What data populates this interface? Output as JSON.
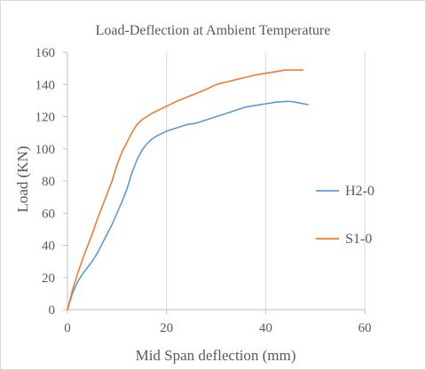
{
  "chart_data": {
    "type": "line",
    "title": "Load-Deflection at Ambient Temperature",
    "xlabel": "Mid Span deflection (mm)",
    "ylabel": "Load (KN)",
    "xlim": [
      0,
      60
    ],
    "ylim": [
      0,
      160
    ],
    "x_ticks": [
      0,
      20,
      40,
      60
    ],
    "y_ticks": [
      0,
      20,
      40,
      60,
      80,
      100,
      120,
      140,
      160
    ],
    "grid": "vertical",
    "legend_position": "right",
    "series": [
      {
        "name": "H2-0",
        "color": "#5b9bd5",
        "x": [
          0,
          1,
          2,
          3,
          4,
          5,
          6,
          7,
          8,
          9,
          10,
          11,
          12,
          13,
          14,
          15,
          16,
          17,
          18,
          20,
          22,
          24,
          26,
          28,
          30,
          32,
          34,
          36,
          38,
          40,
          42,
          44,
          45,
          46,
          48.5
        ],
        "y": [
          0,
          10,
          17,
          22,
          26,
          30,
          35,
          41,
          47,
          53,
          60,
          67,
          75,
          85,
          93,
          99,
          103,
          106,
          108,
          111,
          113,
          115,
          116,
          118,
          120,
          122,
          124,
          126,
          127,
          128,
          129,
          129.5,
          129.5,
          129,
          127.5
        ]
      },
      {
        "name": "S1-0",
        "color": "#ed7d31",
        "x": [
          0,
          1,
          2,
          3,
          4,
          5,
          6,
          7,
          8,
          9,
          10,
          11,
          12,
          13,
          14,
          15,
          16,
          17,
          18,
          20,
          22,
          24,
          26,
          28,
          30,
          32,
          34,
          36,
          38,
          40,
          41,
          42,
          43,
          44,
          45,
          46,
          47.5
        ],
        "y": [
          0,
          12,
          22,
          31,
          39,
          47,
          56,
          64,
          72,
          80,
          90,
          98,
          104,
          110,
          115,
          118,
          120,
          122,
          123.5,
          126.5,
          129.5,
          132,
          134.5,
          137,
          140,
          141.5,
          143,
          144.5,
          146,
          147,
          147.5,
          148,
          148.5,
          149,
          149,
          149,
          149
        ]
      }
    ]
  }
}
